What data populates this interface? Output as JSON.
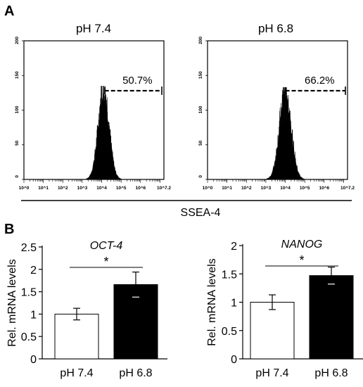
{
  "figure": {
    "panel_a_label": "A",
    "panel_b_label": "B",
    "shared_xlabel": "SSEA-4"
  },
  "chart_data": [
    {
      "type": "histogram",
      "title": "pH 7.4",
      "y_ticks": [
        "0",
        "50",
        "100",
        "150",
        "200"
      ],
      "ylim": [
        0,
        200
      ],
      "x_ticks": [
        "10^0",
        "10^1",
        "10^2",
        "10^3",
        "10^4",
        "10^5",
        "10^6",
        "10^7.2"
      ],
      "xscale": "log",
      "xlim_log": [
        0,
        7.2
      ],
      "peak_log": 4.1,
      "peak_count": 135,
      "spread_log": 0.28,
      "gate_start_log": 4.15,
      "gate_level": 128,
      "gate_percent": "50.7%",
      "color": "#000000"
    },
    {
      "type": "histogram",
      "title": "pH 6.8",
      "y_ticks": [
        "0",
        "50",
        "100",
        "150",
        "200"
      ],
      "ylim": [
        0,
        200
      ],
      "x_ticks": [
        "10^0",
        "10^1",
        "10^2",
        "10^3",
        "10^4",
        "10^5",
        "10^6",
        "10^7.2"
      ],
      "xscale": "log",
      "xlim_log": [
        0,
        7.2
      ],
      "peak_log": 4.0,
      "peak_count": 133,
      "spread_log": 0.3,
      "gate_start_log": 4.0,
      "gate_level": 128,
      "gate_percent": "66.2%",
      "color": "#000000"
    },
    {
      "type": "bar",
      "title": "OCT-4",
      "categories": [
        "pH 7.4",
        "pH 6.8"
      ],
      "values": [
        1.0,
        1.66
      ],
      "errors": [
        0.13,
        0.28
      ],
      "colors": [
        "#ffffff",
        "#000000"
      ],
      "ylabel": "Rel. mRNA levels",
      "ylim": [
        0,
        2.5
      ],
      "y_ticks": [
        "0",
        "0.5",
        "1",
        "1.5",
        "2",
        "2.5"
      ],
      "y_tick_values": [
        0,
        0.5,
        1,
        1.5,
        2,
        2.5
      ],
      "significance": "*"
    },
    {
      "type": "bar",
      "title": "NANOG",
      "categories": [
        "pH 7.4",
        "pH 6.8"
      ],
      "values": [
        1.0,
        1.47
      ],
      "errors": [
        0.13,
        0.15
      ],
      "colors": [
        "#ffffff",
        "#000000"
      ],
      "ylabel": "Rel. mRNA levels",
      "ylim": [
        0,
        2
      ],
      "y_ticks": [
        "0",
        "0.5",
        "1",
        "1.5",
        "2"
      ],
      "y_tick_values": [
        0,
        0.5,
        1,
        1.5,
        2
      ],
      "significance": "*"
    }
  ]
}
